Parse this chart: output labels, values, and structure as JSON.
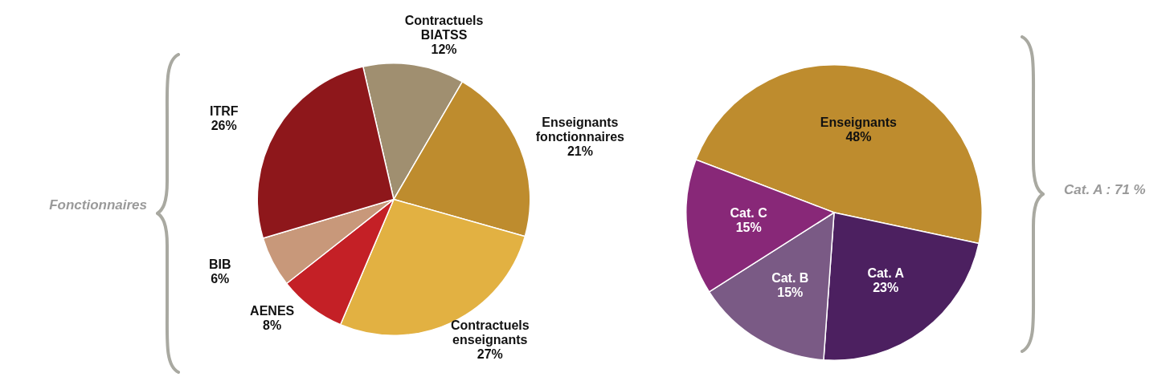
{
  "chart_data": [
    {
      "type": "pie",
      "categories": [
        "Contractuels BIATSS",
        "Enseignants fonctionnaires",
        "Contractuels enseignants",
        "AENES",
        "BIB",
        "ITRF"
      ],
      "values": [
        12,
        21,
        27,
        8,
        6,
        26
      ],
      "colors": [
        "#a08f70",
        "#be8c2e",
        "#e2b142",
        "#c42026",
        "#c8987a",
        "#8e171b"
      ],
      "value_labels": [
        "12%",
        "21%",
        "27%",
        "8%",
        "6%",
        "26%"
      ],
      "annotations": [
        "Fonctionnaires"
      ]
    },
    {
      "type": "pie",
      "categories": [
        "Enseignants",
        "Cat. A",
        "Cat. B",
        "Cat. C"
      ],
      "values": [
        48,
        23,
        15,
        15
      ],
      "colors": [
        "#be8c2e",
        "#4c2060",
        "#7a5a85",
        "#882878"
      ],
      "value_labels": [
        "48%",
        "23%",
        "15%",
        "15%"
      ],
      "annotations": [
        "Cat. A : 71 %"
      ]
    }
  ]
}
